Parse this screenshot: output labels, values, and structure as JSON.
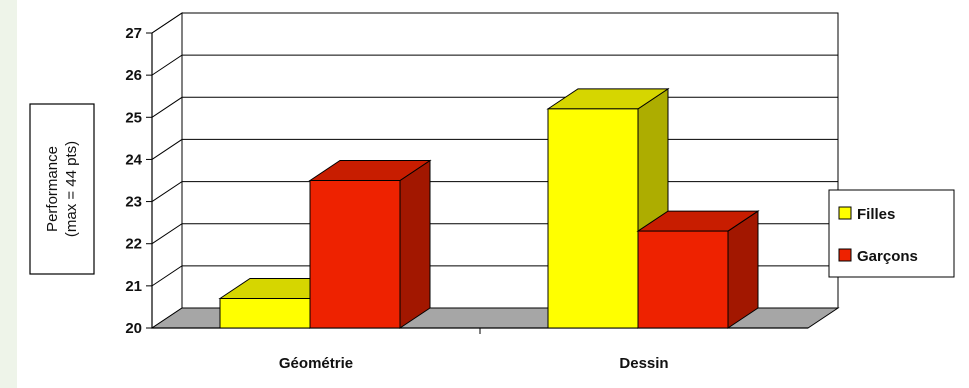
{
  "chart_data": {
    "type": "bar",
    "categories": [
      "Géométrie",
      "Dessin"
    ],
    "series": [
      {
        "name": "Filles",
        "values": [
          20.7,
          25.2
        ]
      },
      {
        "name": "Garçons",
        "values": [
          23.5,
          22.3
        ]
      }
    ],
    "ylabel": [
      "Performance",
      "(max = 44 pts)"
    ],
    "ylim": [
      20,
      27
    ],
    "yticks": [
      20,
      21,
      22,
      23,
      24,
      25,
      26,
      27
    ],
    "grid": true,
    "legend_position": "right",
    "style": "3d-column"
  },
  "colors": {
    "series": [
      "#ffff00",
      "#ee2200"
    ],
    "floor": "#a6a6a6",
    "background": "#ffffff"
  }
}
